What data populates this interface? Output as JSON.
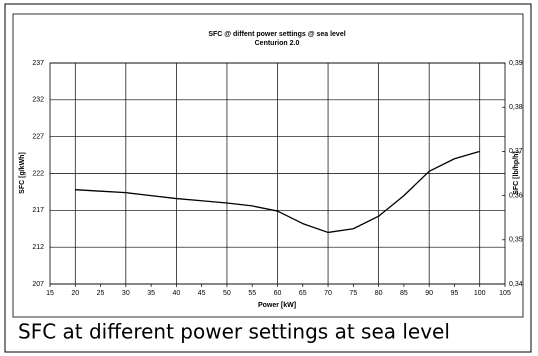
{
  "chart_data": {
    "type": "line",
    "title": "SFC @ diffent power settings @ sea level",
    "subtitle": "Centurion 2.0",
    "xlabel": "Power [kW]",
    "ylabel": "SFC [g/kWh]",
    "y2label": "SFC [lb/hp/h]",
    "caption": "SFC at different power settings at sea level",
    "x": [
      20,
      25,
      30,
      35,
      40,
      45,
      50,
      55,
      60,
      65,
      70,
      75,
      80,
      85,
      90,
      95,
      100
    ],
    "series": [
      {
        "name": "SFC",
        "color": "#000000",
        "values": [
          219.8,
          219.6,
          219.4,
          219.0,
          218.6,
          218.3,
          218.0,
          217.6,
          216.9,
          215.2,
          214.0,
          214.5,
          216.2,
          219.0,
          222.3,
          224.0,
          225.0
        ]
      }
    ],
    "xlim": [
      15,
      105
    ],
    "xticks": [
      15,
      20,
      25,
      30,
      35,
      40,
      45,
      50,
      55,
      60,
      65,
      70,
      75,
      80,
      85,
      90,
      95,
      100,
      105
    ],
    "ylim": [
      207,
      237
    ],
    "yticks": [
      207,
      212,
      217,
      222,
      227,
      232,
      237
    ],
    "y2lim": [
      0.34,
      0.39
    ],
    "y2ticks": [
      {
        "value": 0.34,
        "label": "0,34"
      },
      {
        "value": 0.35,
        "label": "0,35"
      },
      {
        "value": 0.36,
        "label": "0,36"
      },
      {
        "value": 0.37,
        "label": "0,37"
      },
      {
        "value": 0.38,
        "label": "0,38"
      },
      {
        "value": 0.39,
        "label": "0,39"
      }
    ],
    "grid": true
  }
}
